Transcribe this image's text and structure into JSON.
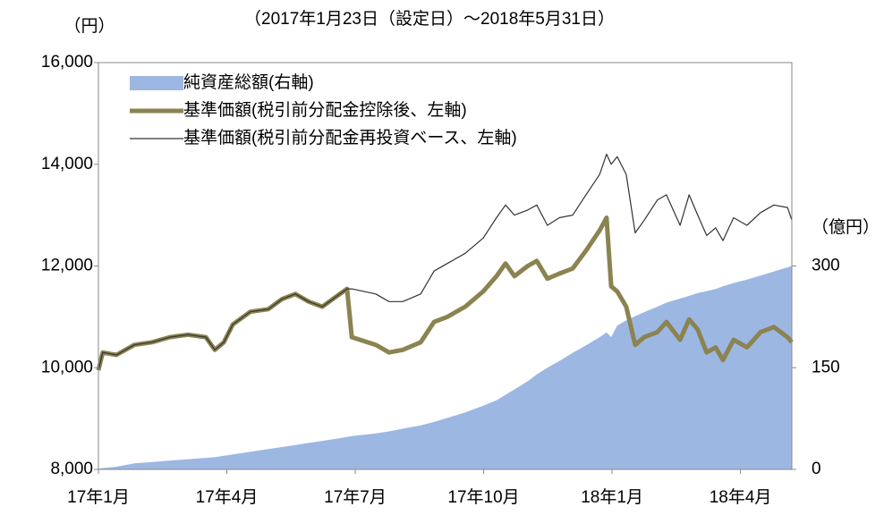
{
  "chart_data": {
    "type": "line",
    "title": "（2017年1月23日（設定日）～2018年5月31日）",
    "y_label": "（円）",
    "y2_label": "（億円）",
    "x": [
      0,
      0.1,
      0.42,
      0.84,
      1.25,
      1.67,
      2.09,
      2.51,
      2.72,
      2.93,
      3.14,
      3.55,
      3.97,
      4.29,
      4.6,
      4.91,
      5.23,
      5.64,
      5.81,
      5.92,
      6.48,
      6.79,
      7.11,
      7.53,
      7.84,
      8.15,
      8.57,
      8.99,
      9.3,
      9.51,
      9.72,
      10.03,
      10.24,
      10.49,
      10.77,
      11.08,
      11.39,
      11.71,
      11.87,
      11.98,
      12.12,
      12.33,
      12.54,
      12.75,
      13.06,
      13.27,
      13.59,
      13.8,
      14.0,
      14.21,
      14.42,
      14.59,
      14.84,
      15.15,
      15.47,
      15.78,
      16.1,
      16.2
    ],
    "xlim": [
      0,
      16.2
    ],
    "xticks": [
      {
        "value": 0,
        "label": "17年1月"
      },
      {
        "value": 3,
        "label": "17年4月"
      },
      {
        "value": 6,
        "label": "17年7月"
      },
      {
        "value": 9,
        "label": "17年10月"
      },
      {
        "value": 12,
        "label": "18年1月"
      },
      {
        "value": 15,
        "label": "18年4月"
      }
    ],
    "ylim": [
      8000,
      16000
    ],
    "yticks": [
      {
        "value": 8000,
        "label": "8,000"
      },
      {
        "value": 10000,
        "label": "10,000"
      },
      {
        "value": 12000,
        "label": "12,000"
      },
      {
        "value": 14000,
        "label": "14,000"
      },
      {
        "value": 16000,
        "label": "16,000"
      }
    ],
    "y2lim": [
      0,
      600
    ],
    "y2ticks": [
      0,
      150,
      300
    ],
    "legend": "upper left",
    "series": [
      {
        "name": "純資産総額(右軸)",
        "type": "area",
        "axis": "y2",
        "color": "#9db7e3",
        "values": [
          1,
          2,
          4,
          9,
          11,
          13,
          15,
          17,
          18,
          20,
          22,
          26,
          30,
          33,
          36,
          39,
          42,
          46,
          48,
          49,
          53,
          56,
          60,
          65,
          70,
          76,
          84,
          94,
          102,
          110,
          118,
          130,
          140,
          150,
          160,
          172,
          183,
          195,
          202,
          195,
          212,
          220,
          226,
          232,
          240,
          246,
          252,
          256,
          260,
          263,
          266,
          270,
          275,
          280,
          286,
          292,
          298,
          300
        ]
      },
      {
        "name": "基準価額(税引前分配金控除後、左軸)",
        "type": "line",
        "color": "#8b8350",
        "width": 5,
        "values": [
          9950,
          10300,
          10250,
          10450,
          10500,
          10600,
          10650,
          10600,
          10350,
          10500,
          10850,
          11100,
          11150,
          11350,
          11450,
          11300,
          11200,
          11450,
          11550,
          10600,
          10450,
          10300,
          10350,
          10500,
          10900,
          11000,
          11200,
          11500,
          11800,
          12050,
          11800,
          12000,
          12100,
          11750,
          11850,
          11950,
          12300,
          12700,
          12950,
          11600,
          11500,
          11200,
          10450,
          10600,
          10700,
          10900,
          10550,
          10950,
          10750,
          10300,
          10400,
          10150,
          10550,
          10400,
          10700,
          10800,
          10600,
          10500
        ]
      },
      {
        "name": "基準価額(税引前分配金再投資ベース、左軸)",
        "type": "line",
        "color": "#333333",
        "width": 1.2,
        "values": [
          9950,
          10300,
          10250,
          10450,
          10500,
          10600,
          10650,
          10600,
          10350,
          10500,
          10850,
          11100,
          11150,
          11350,
          11450,
          11300,
          11200,
          11450,
          11550,
          11550,
          11450,
          11300,
          11300,
          11450,
          11900,
          12050,
          12250,
          12550,
          12950,
          13200,
          13000,
          13100,
          13200,
          12800,
          12950,
          13000,
          13400,
          13800,
          14200,
          14000,
          14150,
          13800,
          12650,
          12900,
          13300,
          13400,
          12800,
          13400,
          13000,
          12600,
          12750,
          12500,
          12950,
          12800,
          13050,
          13200,
          13150,
          12900
        ]
      }
    ]
  }
}
